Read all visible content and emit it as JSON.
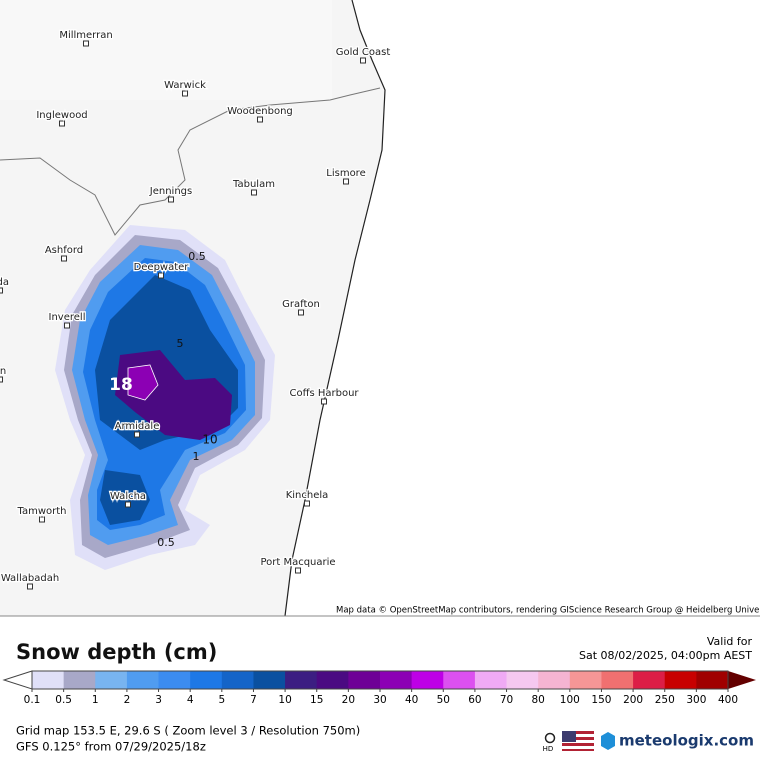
{
  "map": {
    "towns": [
      "Millmerran",
      "Gold Coast",
      "Warwick",
      "Inglewood",
      "Woodenbong",
      "Lismore",
      "Jennings",
      "Tabulam",
      "Ashford",
      "Deepwater",
      "ilda",
      "Grafton",
      "Inverell",
      "on",
      "Coffs Harbour",
      "Armidale",
      "Walcha",
      "Kinchela",
      "Tamworth",
      "Port Macquarie",
      "Wallabadah"
    ],
    "contour_labels": [
      "0.5",
      "18",
      "5",
      "10",
      "1",
      "0.5"
    ],
    "attribution": "Map data © OpenStreetMap contributors, rendering GIScience Research Group @ Heidelberg University"
  },
  "legend": {
    "title": "Snow depth (cm)",
    "valid_label": "Valid for",
    "valid_time": "Sat 08/02/2025, 04:00pm AEST",
    "ticks": [
      "0.1",
      "0.5",
      "1",
      "2",
      "3",
      "4",
      "5",
      "7",
      "10",
      "15",
      "20",
      "30",
      "40",
      "50",
      "60",
      "70",
      "80",
      "100",
      "150",
      "200",
      "250",
      "300",
      "400"
    ],
    "colors": [
      "#e0e0f8",
      "#a8a8c8",
      "#78b4f0",
      "#509cf0",
      "#3c8cf0",
      "#1e78e6",
      "#1464c8",
      "#0a50a0",
      "#3c1e82",
      "#4b0a82",
      "#6e0096",
      "#8c00b4",
      "#be00e6",
      "#dc50f0",
      "#f0aaf5",
      "#f5c8f0",
      "#f5b4d2",
      "#f59696",
      "#f07070",
      "#dc1e46",
      "#c80000",
      "#a00000"
    ]
  },
  "footer": {
    "grid": "Grid map 153.5 E, 29.6 S ( Zoom level 3 / Resolution 750m)",
    "model": "GFS 0.125° from  07/29/2025/18z",
    "hd": "HD",
    "brand": "meteologix.com"
  }
}
